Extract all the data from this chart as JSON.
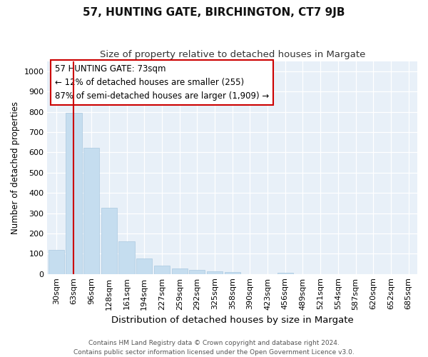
{
  "title": "57, HUNTING GATE, BIRCHINGTON, CT7 9JB",
  "subtitle": "Size of property relative to detached houses in Margate",
  "xlabel": "Distribution of detached houses by size in Margate",
  "ylabel": "Number of detached properties",
  "categories": [
    "30sqm",
    "63sqm",
    "96sqm",
    "128sqm",
    "161sqm",
    "194sqm",
    "227sqm",
    "259sqm",
    "292sqm",
    "325sqm",
    "358sqm",
    "390sqm",
    "423sqm",
    "456sqm",
    "489sqm",
    "521sqm",
    "554sqm",
    "587sqm",
    "620sqm",
    "652sqm",
    "685sqm"
  ],
  "values": [
    120,
    795,
    622,
    325,
    160,
    78,
    40,
    28,
    20,
    13,
    10,
    0,
    0,
    7,
    0,
    0,
    0,
    0,
    0,
    0,
    0
  ],
  "bar_color": "#c5ddef",
  "bar_edge_color": "#aac8e0",
  "vline_x_index": 1,
  "vline_color": "#cc0000",
  "annotation_line1": "57 HUNTING GATE: 73sqm",
  "annotation_line2": "← 12% of detached houses are smaller (255)",
  "annotation_line3": "87% of semi-detached houses are larger (1,909) →",
  "annotation_box_color": "#ffffff",
  "annotation_box_edge": "#cc0000",
  "ylim": [
    0,
    1050
  ],
  "yticks": [
    0,
    100,
    200,
    300,
    400,
    500,
    600,
    700,
    800,
    900,
    1000
  ],
  "background_color": "#e8f0f8",
  "fig_background_color": "#ffffff",
  "footer_line1": "Contains HM Land Registry data © Crown copyright and database right 2024.",
  "footer_line2": "Contains public sector information licensed under the Open Government Licence v3.0.",
  "title_fontsize": 11,
  "subtitle_fontsize": 9.5,
  "xlabel_fontsize": 9.5,
  "ylabel_fontsize": 8.5,
  "tick_fontsize": 8,
  "annotation_fontsize": 8.5,
  "footer_fontsize": 6.5
}
